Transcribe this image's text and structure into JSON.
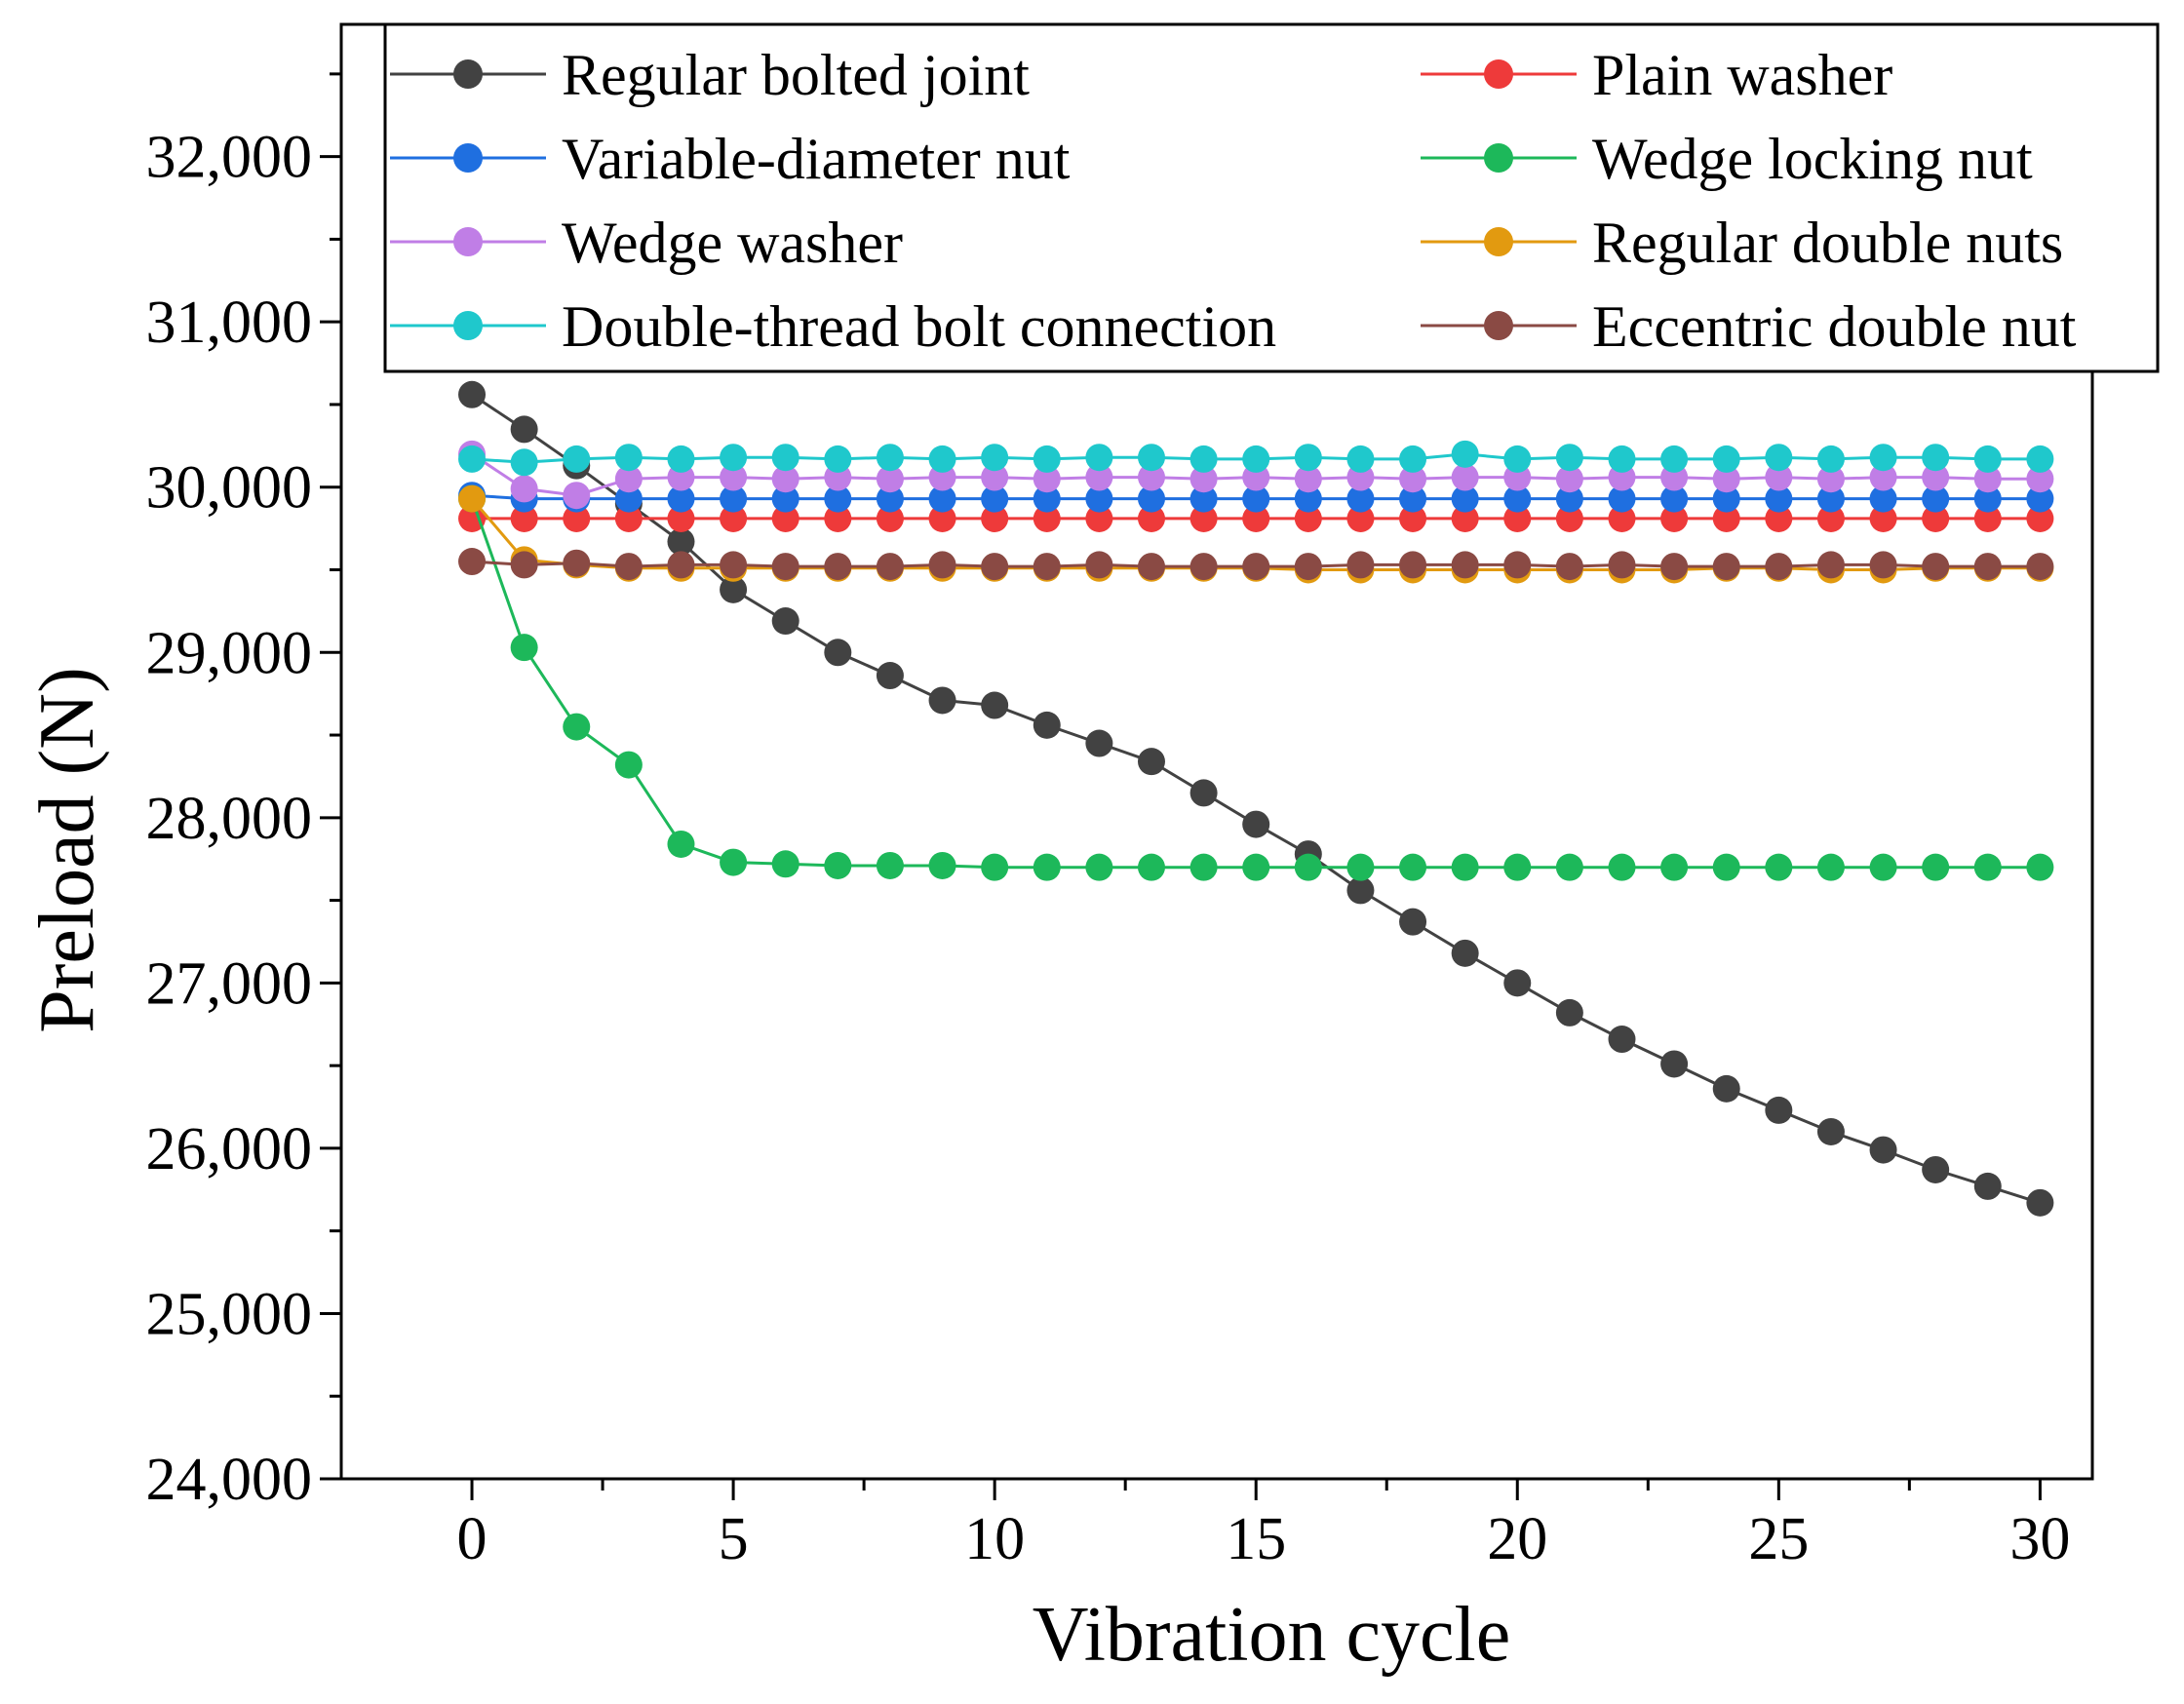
{
  "chart_data": {
    "type": "line",
    "title": "",
    "xlabel": "Vibration cycle",
    "ylabel": "Preload (N)",
    "xlim": [
      -2.5,
      31
    ],
    "ylim": [
      24000,
      32800
    ],
    "xticks": [
      0,
      5,
      10,
      15,
      20,
      25,
      30
    ],
    "xtick_labels": [
      "0",
      "5",
      "10",
      "15",
      "20",
      "25",
      "30"
    ],
    "yticks": [
      24000,
      25000,
      26000,
      27000,
      28000,
      29000,
      30000,
      31000,
      32000
    ],
    "ytick_labels": [
      "24,000",
      "25,000",
      "26,000",
      "27,000",
      "28,000",
      "29,000",
      "30,000",
      "31,000",
      "32,000"
    ],
    "grid": false,
    "legend_position": "top",
    "x": [
      0,
      1,
      2,
      3,
      4,
      5,
      6,
      7,
      8,
      9,
      10,
      11,
      12,
      13,
      14,
      15,
      16,
      17,
      18,
      19,
      20,
      21,
      22,
      23,
      24,
      25,
      26,
      27,
      28,
      29,
      30
    ],
    "series": [
      {
        "name": "Regular bolted joint",
        "color": "#424242",
        "values": [
          30560,
          30350,
          30130,
          29900,
          29670,
          29380,
          29190,
          29000,
          28860,
          28710,
          28680,
          28560,
          28450,
          28340,
          28150,
          27960,
          27780,
          27560,
          27370,
          27180,
          27000,
          26820,
          26660,
          26510,
          26360,
          26230,
          26100,
          25990,
          25870,
          25770,
          25670
        ]
      },
      {
        "name": "Plain washer",
        "color": "#ee3a3a",
        "values": [
          29810,
          29810,
          29810,
          29810,
          29810,
          29810,
          29810,
          29810,
          29810,
          29810,
          29810,
          29810,
          29810,
          29810,
          29810,
          29810,
          29810,
          29810,
          29810,
          29810,
          29810,
          29810,
          29810,
          29810,
          29810,
          29810,
          29810,
          29810,
          29810,
          29810,
          29810
        ]
      },
      {
        "name": "Variable-diameter nut",
        "color": "#1f6fe0",
        "values": [
          29950,
          29930,
          29930,
          29930,
          29930,
          29930,
          29930,
          29930,
          29930,
          29930,
          29930,
          29930,
          29930,
          29930,
          29930,
          29930,
          29930,
          29930,
          29930,
          29930,
          29930,
          29930,
          29930,
          29930,
          29930,
          29930,
          29930,
          29930,
          29930,
          29930,
          29930
        ]
      },
      {
        "name": "Wedge locking nut",
        "color": "#1db85a",
        "values": [
          29930,
          29030,
          28550,
          28320,
          27840,
          27730,
          27720,
          27710,
          27710,
          27710,
          27700,
          27700,
          27700,
          27700,
          27700,
          27700,
          27700,
          27700,
          27700,
          27700,
          27700,
          27700,
          27700,
          27700,
          27700,
          27700,
          27700,
          27700,
          27700,
          27700,
          27700
        ]
      },
      {
        "name": "Wedge washer",
        "color": "#c07ee6",
        "values": [
          30200,
          29990,
          29950,
          30050,
          30060,
          30060,
          30050,
          30060,
          30050,
          30060,
          30060,
          30050,
          30060,
          30060,
          30050,
          30060,
          30050,
          30060,
          30050,
          30060,
          30060,
          30050,
          30060,
          30060,
          30050,
          30060,
          30050,
          30060,
          30060,
          30050,
          30050
        ]
      },
      {
        "name": "Regular double nuts",
        "color": "#e29a10",
        "values": [
          29930,
          29560,
          29530,
          29510,
          29510,
          29510,
          29510,
          29510,
          29510,
          29510,
          29510,
          29510,
          29510,
          29510,
          29510,
          29510,
          29500,
          29500,
          29500,
          29500,
          29500,
          29500,
          29500,
          29500,
          29510,
          29510,
          29500,
          29500,
          29510,
          29510,
          29510
        ]
      },
      {
        "name": "Double-thread bolt connection",
        "color": "#1fc8cc",
        "values": [
          30170,
          30150,
          30170,
          30180,
          30170,
          30180,
          30180,
          30170,
          30180,
          30170,
          30180,
          30170,
          30180,
          30180,
          30170,
          30170,
          30180,
          30170,
          30170,
          30200,
          30170,
          30180,
          30170,
          30170,
          30170,
          30180,
          30170,
          30180,
          30180,
          30170,
          30170
        ]
      },
      {
        "name": "Eccentric double nut",
        "color": "#8a4a44",
        "values": [
          29550,
          29530,
          29540,
          29520,
          29530,
          29530,
          29520,
          29520,
          29520,
          29530,
          29520,
          29520,
          29530,
          29520,
          29520,
          29520,
          29520,
          29530,
          29530,
          29530,
          29530,
          29520,
          29530,
          29520,
          29520,
          29520,
          29530,
          29530,
          29520,
          29520,
          29520
        ]
      }
    ]
  }
}
